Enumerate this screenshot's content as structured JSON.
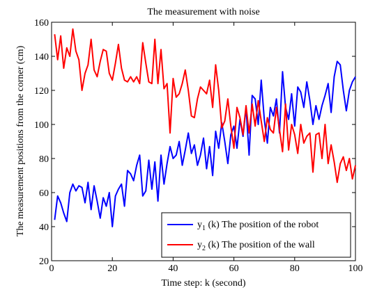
{
  "chart_data": {
    "type": "line",
    "title": "The measurement with noise",
    "xlabel": "Time step: k (second)",
    "ylabel": "The measurement positions from the corner (cm)",
    "xlim": [
      0,
      100
    ],
    "ylim": [
      20,
      160
    ],
    "xticks": [
      0,
      20,
      40,
      60,
      80,
      100
    ],
    "yticks": [
      20,
      40,
      60,
      80,
      100,
      120,
      140,
      160
    ],
    "grid": false,
    "legend_position": "bottom-right",
    "series": [
      {
        "name": "y1 (k) The position of the robot",
        "legend_base": "y",
        "legend_sub": "1",
        "legend_rest": " (k) The position of the robot",
        "color": "#0000ff",
        "x": [
          1,
          2,
          3,
          4,
          5,
          6,
          7,
          8,
          9,
          10,
          11,
          12,
          13,
          14,
          15,
          16,
          17,
          18,
          19,
          20,
          21,
          22,
          23,
          24,
          25,
          26,
          27,
          28,
          29,
          30,
          31,
          32,
          33,
          34,
          35,
          36,
          37,
          38,
          39,
          40,
          41,
          42,
          43,
          44,
          45,
          46,
          47,
          48,
          49,
          50,
          51,
          52,
          53,
          54,
          55,
          56,
          57,
          58,
          59,
          60,
          61,
          62,
          63,
          64,
          65,
          66,
          67,
          68,
          69,
          70,
          71,
          72,
          73,
          74,
          75,
          76,
          77,
          78,
          79,
          80,
          81,
          82,
          83,
          84,
          85,
          86,
          87,
          88,
          89,
          90,
          91,
          92,
          93,
          94,
          95,
          96,
          97,
          98,
          99,
          100
        ],
        "y": [
          44,
          58,
          54,
          48,
          43,
          60,
          65,
          61,
          64,
          63,
          54,
          66,
          50,
          64,
          55,
          45,
          57,
          52,
          60,
          40,
          58,
          62,
          65,
          52,
          73,
          71,
          67,
          76,
          82,
          58,
          61,
          79,
          62,
          78,
          55,
          82,
          65,
          77,
          87,
          80,
          82,
          90,
          76,
          85,
          95,
          83,
          88,
          76,
          82,
          92,
          74,
          87,
          70,
          96,
          86,
          101,
          90,
          77,
          94,
          99,
          86,
          103,
          93,
          110,
          82,
          117,
          115,
          100,
          126,
          103,
          89,
          110,
          105,
          115,
          95,
          131,
          110,
          103,
          118,
          99,
          122,
          119,
          110,
          125,
          114,
          100,
          111,
          103,
          111,
          117,
          124,
          107,
          128,
          137,
          135,
          120,
          108,
          120,
          125,
          128
        ]
      },
      {
        "name": "y2 (k) The position of the wall",
        "legend_base": "y",
        "legend_sub": "2",
        "legend_rest": " (k) The position of the wall",
        "color": "#ff0000",
        "x": [
          1,
          2,
          3,
          4,
          5,
          6,
          7,
          8,
          9,
          10,
          11,
          12,
          13,
          14,
          15,
          16,
          17,
          18,
          19,
          20,
          21,
          22,
          23,
          24,
          25,
          26,
          27,
          28,
          29,
          30,
          31,
          32,
          33,
          34,
          35,
          36,
          37,
          38,
          39,
          40,
          41,
          42,
          43,
          44,
          45,
          46,
          47,
          48,
          49,
          50,
          51,
          52,
          53,
          54,
          55,
          56,
          57,
          58,
          59,
          60,
          61,
          62,
          63,
          64,
          65,
          66,
          67,
          68,
          69,
          70,
          71,
          72,
          73,
          74,
          75,
          76,
          77,
          78,
          79,
          80,
          81,
          82,
          83,
          84,
          85,
          86,
          87,
          88,
          89,
          90,
          91,
          92,
          93,
          94,
          95,
          96,
          97,
          98,
          99,
          100
        ],
        "y": [
          153,
          138,
          152,
          133,
          145,
          140,
          156,
          143,
          138,
          120,
          130,
          135,
          150,
          132,
          128,
          137,
          144,
          143,
          130,
          126,
          136,
          147,
          133,
          126,
          125,
          128,
          125,
          128,
          124,
          148,
          136,
          125,
          124,
          150,
          124,
          144,
          121,
          124,
          95,
          127,
          116,
          118,
          124,
          132,
          120,
          105,
          104,
          115,
          122,
          120,
          118,
          126,
          110,
          135,
          120,
          98,
          102,
          115,
          99,
          86,
          110,
          104,
          94,
          111,
          95,
          112,
          99,
          114,
          102,
          90,
          104,
          97,
          95,
          110,
          97,
          84,
          112,
          85,
          100,
          94,
          83,
          100,
          89,
          93,
          95,
          72,
          94,
          95,
          80,
          100,
          77,
          88,
          78,
          66,
          77,
          81,
          73,
          80,
          68,
          76
        ]
      }
    ]
  }
}
